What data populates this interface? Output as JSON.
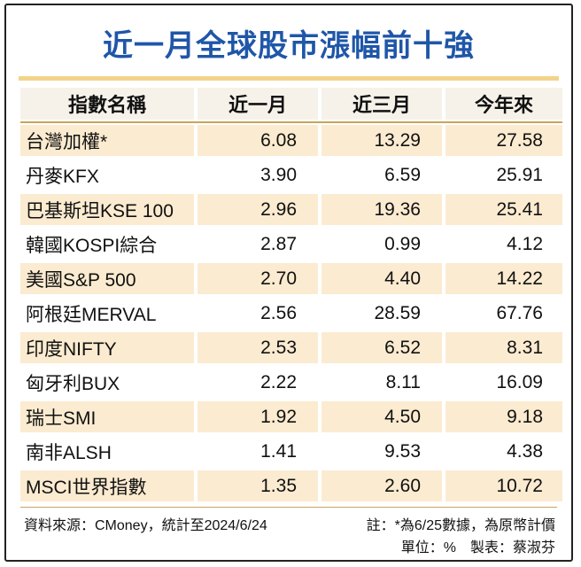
{
  "title": "近一月全球股市漲幅前十強",
  "table": {
    "headers": [
      "指數名稱",
      "近一月",
      "近三月",
      "今年來"
    ],
    "rows": [
      [
        "台灣加權*",
        "6.08",
        "13.29",
        "27.58"
      ],
      [
        "丹麥KFX",
        "3.90",
        "6.59",
        "25.91"
      ],
      [
        "巴基斯坦KSE 100",
        "2.96",
        "19.36",
        "25.41"
      ],
      [
        "韓國KOSPI綜合",
        "2.87",
        "0.99",
        "4.12"
      ],
      [
        "美國S&P 500",
        "2.70",
        "4.40",
        "14.22"
      ],
      [
        "阿根廷MERVAL",
        "2.56",
        "28.59",
        "67.76"
      ],
      [
        "印度NIFTY",
        "2.53",
        "6.52",
        "8.31"
      ],
      [
        "匈牙利BUX",
        "2.22",
        "8.11",
        "16.09"
      ],
      [
        "瑞士SMI",
        "1.92",
        "4.50",
        "9.18"
      ],
      [
        "南非ALSH",
        "1.41",
        "9.53",
        "4.38"
      ],
      [
        "MSCI世界指數",
        "1.35",
        "2.60",
        "10.72"
      ]
    ]
  },
  "footer": {
    "source": "資料來源：CMoney，統計至2024/6/24",
    "note": "註：*為6/25數據，為原幣計價",
    "unit_author": "單位：%　製表：蔡淑芬"
  },
  "colors": {
    "title": "#1f56a8",
    "shade": "#fbebd0",
    "rule": "#c9a55c"
  }
}
